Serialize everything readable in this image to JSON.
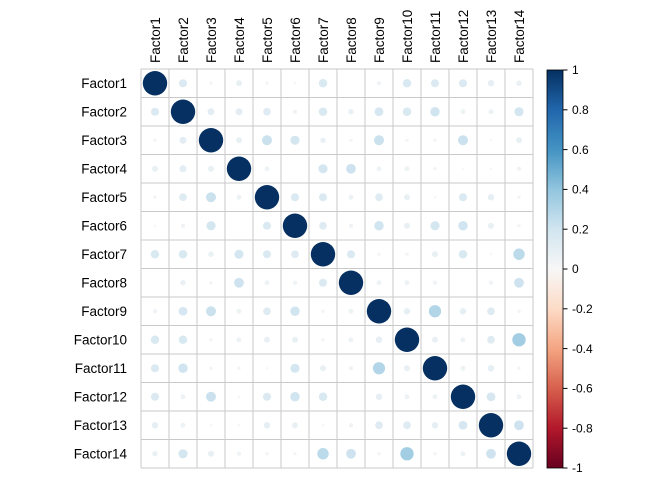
{
  "chart_data": {
    "type": "heatmap",
    "subtype": "correlation-circle-matrix",
    "title": "",
    "labels": [
      "Factor1",
      "Factor2",
      "Factor3",
      "Factor4",
      "Factor5",
      "Factor6",
      "Factor7",
      "Factor8",
      "Factor9",
      "Factor10",
      "Factor11",
      "Factor12",
      "Factor13",
      "Factor14"
    ],
    "matrix": [
      [
        1.0,
        0.11,
        0.02,
        0.06,
        0.02,
        0.01,
        0.12,
        0.0,
        0.03,
        0.12,
        0.11,
        0.11,
        0.07,
        0.05
      ],
      [
        0.11,
        1.0,
        0.08,
        0.08,
        0.1,
        0.03,
        0.12,
        0.05,
        0.13,
        0.12,
        0.15,
        0.04,
        0.04,
        0.14
      ],
      [
        0.02,
        0.08,
        1.0,
        0.06,
        0.17,
        0.14,
        0.05,
        0.02,
        0.17,
        0.02,
        0.02,
        0.17,
        0.01,
        0.06
      ],
      [
        0.06,
        0.08,
        0.06,
        1.0,
        0.04,
        0.0,
        0.14,
        0.16,
        0.04,
        0.04,
        0.02,
        0.01,
        0.01,
        0.03
      ],
      [
        0.02,
        0.1,
        0.17,
        0.04,
        1.0,
        0.11,
        0.11,
        0.04,
        0.1,
        0.06,
        0.01,
        0.11,
        0.07,
        0.02
      ],
      [
        0.01,
        0.03,
        0.14,
        0.0,
        0.11,
        1.0,
        0.1,
        0.03,
        0.15,
        0.06,
        0.14,
        0.15,
        0.06,
        0.02
      ],
      [
        0.12,
        0.12,
        0.05,
        0.14,
        0.11,
        0.1,
        1.0,
        0.11,
        0.02,
        0.02,
        0.06,
        0.12,
        0.01,
        0.22
      ],
      [
        0.0,
        0.05,
        0.02,
        0.16,
        0.04,
        0.03,
        0.11,
        1.0,
        0.04,
        0.04,
        0.03,
        0.0,
        0.03,
        0.16
      ],
      [
        0.03,
        0.13,
        0.17,
        0.04,
        0.1,
        0.15,
        0.02,
        0.04,
        1.0,
        0.07,
        0.25,
        0.07,
        0.1,
        0.02
      ],
      [
        0.12,
        0.12,
        0.02,
        0.04,
        0.06,
        0.06,
        0.02,
        0.04,
        0.07,
        1.0,
        0.06,
        0.04,
        0.1,
        0.3
      ],
      [
        0.11,
        0.15,
        0.02,
        0.02,
        0.01,
        0.14,
        0.06,
        0.03,
        0.25,
        0.06,
        1.0,
        0.04,
        0.07,
        0.02
      ],
      [
        0.11,
        0.04,
        0.17,
        0.01,
        0.11,
        0.15,
        0.12,
        0.0,
        0.07,
        0.04,
        0.04,
        1.0,
        0.13,
        0.04
      ],
      [
        0.07,
        0.04,
        0.01,
        0.01,
        0.07,
        0.06,
        0.01,
        0.03,
        0.1,
        0.1,
        0.07,
        0.13,
        1.0,
        0.16
      ],
      [
        0.05,
        0.14,
        0.06,
        0.03,
        0.02,
        0.02,
        0.22,
        0.16,
        0.02,
        0.3,
        0.02,
        0.04,
        0.16,
        1.0
      ]
    ],
    "legend": {
      "position": "right",
      "range": [
        -1,
        1
      ],
      "tick_labels": [
        "1",
        "0.8",
        "0.6",
        "0.4",
        "0.2",
        "0",
        "-0.2",
        "-0.4",
        "-0.6",
        "-0.8",
        "-1"
      ],
      "tick_values": [
        1,
        0.8,
        0.6,
        0.4,
        0.2,
        0,
        -0.2,
        -0.4,
        -0.6,
        -0.8,
        -1
      ],
      "gradient_colors_top_to_bottom": [
        "#053061",
        "#2166AC",
        "#4393C3",
        "#92C5DE",
        "#D1E5F0",
        "#F7F7F7",
        "#FDDBC7",
        "#F4A582",
        "#D6604D",
        "#B2182B",
        "#67001F"
      ]
    },
    "palette": {
      "name": "RdBu",
      "anchor_values": [
        -1,
        -0.8,
        -0.6,
        -0.35,
        -0.15,
        0,
        0.15,
        0.35,
        0.6,
        0.8,
        1
      ],
      "anchor_colors": [
        "#67001F",
        "#B2182B",
        "#D6604D",
        "#F4A582",
        "#FDDBC7",
        "#F7F7F7",
        "#D1E5F0",
        "#92C5DE",
        "#4393C3",
        "#2166AC",
        "#053061"
      ]
    },
    "grid": true,
    "grid_color": "#c9c9c9",
    "diagonal_color": "#053061",
    "label_color": "#000000"
  }
}
